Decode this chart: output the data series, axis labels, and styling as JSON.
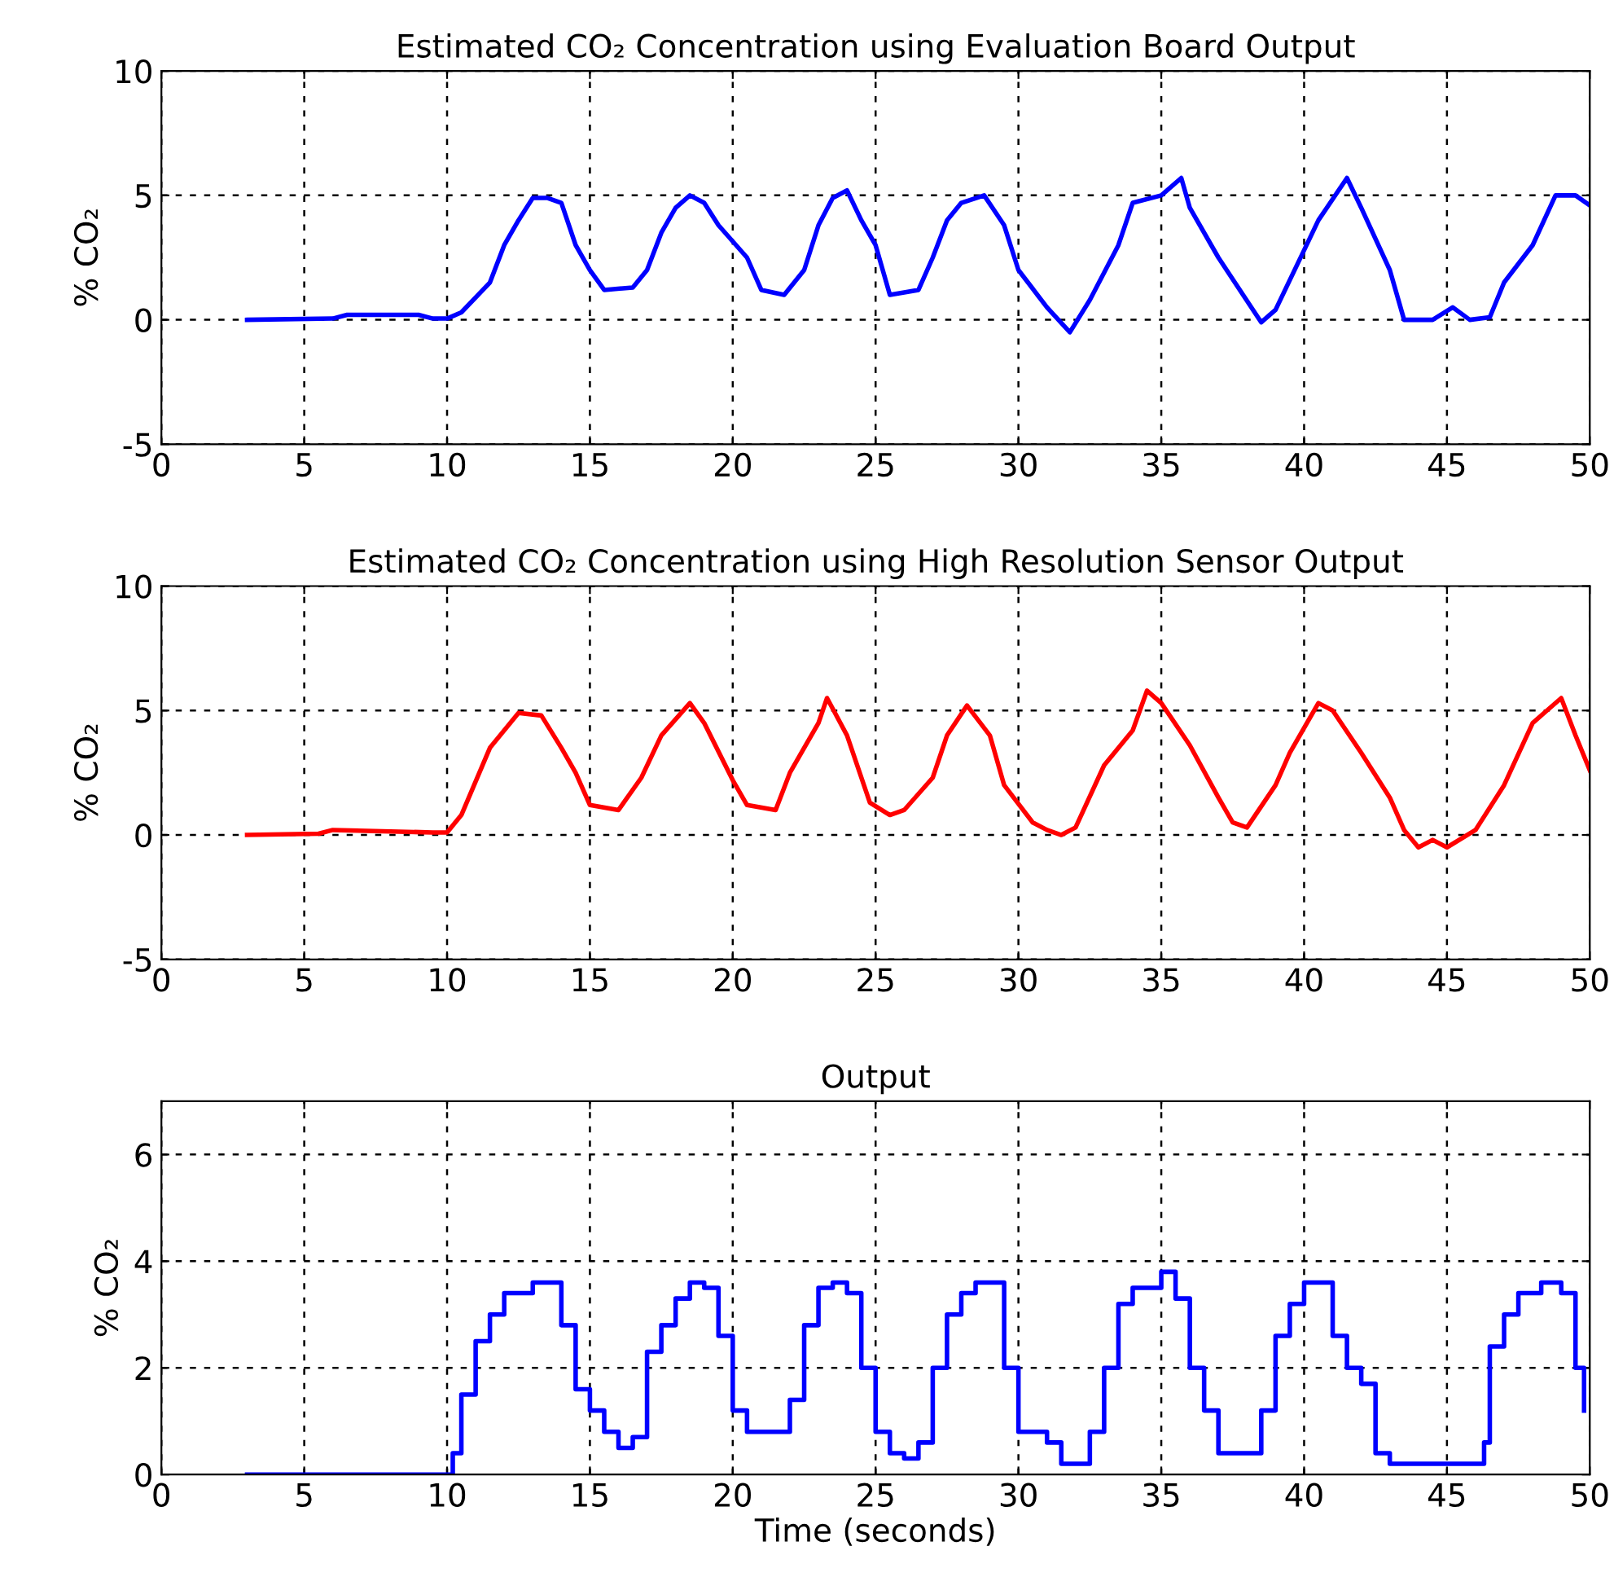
{
  "chart_data": [
    {
      "type": "line",
      "title": "Estimated CO₂ Concentration using Evaluation Board Output",
      "ylabel": "% CO₂",
      "xlim": [
        0,
        50
      ],
      "ylim": [
        -5,
        10
      ],
      "xticks": [
        0,
        5,
        10,
        15,
        20,
        25,
        30,
        35,
        40,
        45,
        50
      ],
      "yticks": [
        -5,
        0,
        5,
        10
      ],
      "grid": true,
      "line_style": "solid",
      "marker": "none",
      "series": [
        {
          "color": "#0000ff",
          "x": [
            3,
            6,
            6.5,
            9,
            9.5,
            10,
            10.5,
            11.5,
            12,
            12.5,
            13,
            13.5,
            14,
            14.5,
            15,
            15.5,
            16.5,
            17,
            17.5,
            18,
            18.5,
            19,
            19.5,
            20.5,
            21,
            21.8,
            22.5,
            23,
            23.5,
            24,
            24.5,
            25,
            25.5,
            26.5,
            27,
            27.5,
            28,
            28.8,
            29.5,
            30,
            31,
            31.8,
            32.5,
            33.5,
            34,
            35,
            35.7,
            36,
            37,
            38.5,
            39,
            40,
            40.5,
            41.5,
            42,
            43,
            43.5,
            44.5,
            45.2,
            45.8,
            46.5,
            47,
            48,
            48.8,
            49.5,
            50
          ],
          "values": [
            0,
            0.05,
            0.2,
            0.2,
            0.05,
            0.05,
            0.3,
            1.5,
            3,
            4,
            4.9,
            4.9,
            4.7,
            3,
            2,
            1.2,
            1.3,
            2,
            3.5,
            4.5,
            5,
            4.7,
            3.8,
            2.5,
            1.2,
            1,
            2,
            3.8,
            4.9,
            5.2,
            4,
            3,
            1,
            1.2,
            2.5,
            4,
            4.7,
            5,
            3.8,
            2,
            0.5,
            -0.5,
            0.8,
            3,
            4.7,
            5,
            5.7,
            4.5,
            2.5,
            -0.1,
            0.4,
            2.8,
            4,
            5.7,
            4.5,
            2,
            0,
            0,
            0.5,
            0,
            0.1,
            1.5,
            3,
            5,
            5,
            4.6
          ]
        }
      ]
    },
    {
      "type": "line",
      "title": "Estimated CO₂ Concentration using High Resolution Sensor Output",
      "ylabel": "% CO₂",
      "xlim": [
        0,
        50
      ],
      "ylim": [
        -5,
        10
      ],
      "xticks": [
        0,
        5,
        10,
        15,
        20,
        25,
        30,
        35,
        40,
        45,
        50
      ],
      "yticks": [
        -5,
        0,
        5,
        10
      ],
      "grid": true,
      "line_style": "solid",
      "marker": "none",
      "series": [
        {
          "color": "#ff0000",
          "x": [
            3,
            5.5,
            6,
            9.5,
            10,
            10.5,
            11.5,
            12.5,
            13.3,
            14,
            14.5,
            15,
            16,
            16.8,
            17.5,
            18.5,
            19,
            20,
            20.5,
            21.5,
            22,
            23,
            23.3,
            24,
            24.8,
            25.5,
            26,
            27,
            27.5,
            28.2,
            29,
            29.5,
            30.5,
            31,
            31.5,
            32,
            33,
            34,
            34.5,
            35,
            36,
            37,
            37.5,
            38,
            39,
            39.5,
            40.5,
            41,
            42,
            43,
            43.5,
            44,
            44.5,
            45,
            46,
            47,
            48,
            48.5,
            49,
            49.5,
            50
          ],
          "values": [
            0,
            0.05,
            0.2,
            0.1,
            0.1,
            0.8,
            3.5,
            4.9,
            4.8,
            3.5,
            2.5,
            1.2,
            1,
            2.3,
            4,
            5.3,
            4.5,
            2.2,
            1.2,
            1,
            2.5,
            4.5,
            5.5,
            4,
            1.3,
            0.8,
            1,
            2.3,
            4,
            5.2,
            4,
            2,
            0.5,
            0.2,
            0,
            0.3,
            2.8,
            4.2,
            5.8,
            5.3,
            3.6,
            1.5,
            0.5,
            0.3,
            2,
            3.3,
            5.3,
            5,
            3.3,
            1.5,
            0.2,
            -0.5,
            -0.2,
            -0.5,
            0.2,
            2,
            4.5,
            5,
            5.5,
            4,
            2.6
          ]
        }
      ]
    },
    {
      "type": "step",
      "title": "Output",
      "xlabel": "Time (seconds)",
      "ylabel": "% CO₂",
      "xlim": [
        0,
        50
      ],
      "ylim": [
        0,
        7
      ],
      "xticks": [
        0,
        5,
        10,
        15,
        20,
        25,
        30,
        35,
        40,
        45,
        50
      ],
      "yticks": [
        0,
        2,
        4,
        6
      ],
      "grid": true,
      "line_style": "solid",
      "marker": "none",
      "series": [
        {
          "color": "#0000ff",
          "x": [
            3,
            10,
            10.2,
            10.5,
            11,
            11.5,
            12,
            12.5,
            13,
            13.7,
            14,
            14.5,
            15,
            15.5,
            16,
            16.5,
            17,
            17.5,
            18,
            18.5,
            19,
            19.5,
            20,
            20.5,
            21.5,
            22,
            22.5,
            23,
            23.5,
            24,
            24.5,
            25,
            25.5,
            26,
            26.5,
            27,
            27.5,
            28,
            28.5,
            29,
            29.5,
            30,
            31,
            31.5,
            32,
            32.5,
            33,
            33.5,
            34,
            35,
            35.5,
            36,
            36.5,
            37,
            38,
            38.5,
            39,
            39.5,
            40,
            40.5,
            41,
            41.5,
            42,
            42.5,
            43,
            45,
            46,
            46.3,
            46.5,
            47,
            47.5,
            48.3,
            49,
            49.5,
            49.8
          ],
          "values": [
            0,
            0,
            0.4,
            1.5,
            2.5,
            3,
            3.4,
            3.4,
            3.6,
            3.6,
            2.8,
            1.6,
            1.2,
            0.8,
            0.5,
            0.7,
            2.3,
            2.8,
            3.3,
            3.6,
            3.5,
            2.6,
            1.2,
            0.8,
            0.8,
            1.4,
            2.8,
            3.5,
            3.6,
            3.4,
            2,
            0.8,
            0.4,
            0.3,
            0.6,
            2,
            3,
            3.4,
            3.6,
            3.6,
            2,
            0.8,
            0.6,
            0.2,
            0.2,
            0.8,
            2,
            3.2,
            3.5,
            3.8,
            3.3,
            2,
            1.2,
            0.4,
            0.4,
            1.2,
            2.6,
            3.2,
            3.6,
            3.6,
            2.6,
            2,
            1.7,
            0.4,
            0.2,
            0.2,
            0.2,
            0.6,
            2.4,
            3,
            3.4,
            3.6,
            3.4,
            2,
            1.2
          ]
        }
      ]
    }
  ]
}
